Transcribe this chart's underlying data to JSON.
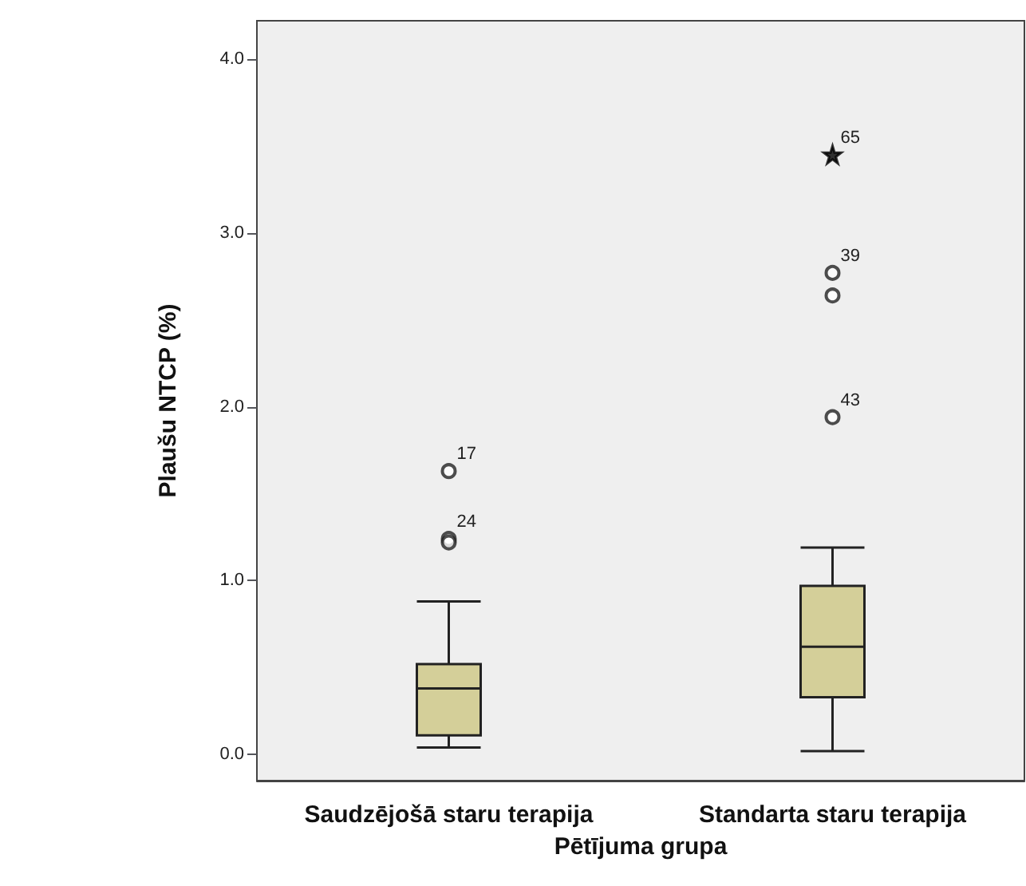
{
  "chart_data": {
    "type": "box",
    "categories": [
      "Saudzējošā staru terapija",
      "Standarta staru terapija"
    ],
    "xlabel": "Pētījuma grupa",
    "ylabel": "Plaušu NTCP (%)",
    "ylim": [
      -0.15,
      4.22
    ],
    "yticks": [
      {
        "value": 0,
        "label": "0.0"
      },
      {
        "value": 1,
        "label": "1.0"
      },
      {
        "value": 2,
        "label": "2.0"
      },
      {
        "value": 3,
        "label": "3.0"
      },
      {
        "value": 4,
        "label": "4.0"
      }
    ],
    "grid": false,
    "series": [
      {
        "color": "#d4cf99",
        "boxes": [
          {
            "low": 0.04,
            "q1": 0.11,
            "median": 0.38,
            "q3": 0.52,
            "high": 0.88
          },
          {
            "low": 0.02,
            "q1": 0.33,
            "median": 0.62,
            "q3": 0.97,
            "high": 1.19
          }
        ]
      },
      {
        "type": "scatter",
        "marker": "circle",
        "color": "#222222",
        "x": [
          "Saudzējošā staru terapija",
          "Saudzējošā staru terapija",
          "Saudzējošā staru terapija",
          "Standarta staru terapija",
          "Standarta staru terapija",
          "Standarta staru terapija"
        ],
        "values": [
          1.63,
          1.24,
          1.22,
          1.94,
          2.64,
          2.77
        ]
      },
      {
        "type": "scatter",
        "marker": "star",
        "color": "#000000",
        "x": [
          "Standarta staru terapija"
        ],
        "values": [
          3.45
        ]
      }
    ],
    "annotations": [
      {
        "text": "17",
        "x": "Saudzējošā staru terapija",
        "y": 1.63
      },
      {
        "text": "24",
        "x": "Saudzējošā staru terapija",
        "y": 1.24
      },
      {
        "text": "43",
        "x": "Standarta staru terapija",
        "y": 1.94
      },
      {
        "text": "39",
        "x": "Standarta staru terapija",
        "y": 2.77
      },
      {
        "text": "65",
        "x": "Standarta staru terapija",
        "y": 3.45
      }
    ]
  }
}
